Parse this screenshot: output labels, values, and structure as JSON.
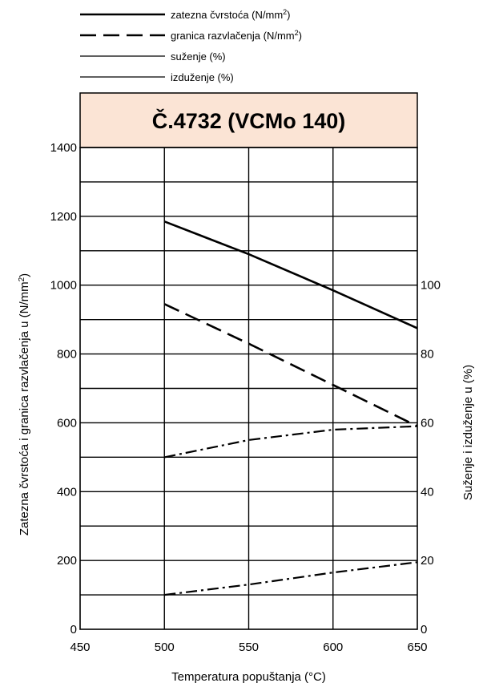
{
  "chart_data": {
    "type": "line",
    "title": "Č.4732 (VCMo 140)",
    "title_bg": "#fbe4d5",
    "xlabel": "Temperatura popuštanja (°C)",
    "ylabel": "Zatezna čvrstoća i granica razvlačenja u",
    "ylabel_unit": "(N/mm",
    "ylabel_unit_sup": "2",
    "ylabel_unit_close": ")",
    "y2label": "Suženje i izduženje u (%)",
    "xlim": [
      450,
      650
    ],
    "ylim": [
      0,
      1400
    ],
    "y2lim": [
      0,
      140
    ],
    "grid": true,
    "legend_position": "top",
    "x_ticks": [
      "450",
      "500",
      "550",
      "600",
      "650"
    ],
    "y_ticks": [
      "0",
      "200",
      "400",
      "600",
      "800",
      "1000",
      "1200",
      "1400"
    ],
    "y2_ticks": [
      "0",
      "20",
      "40",
      "60",
      "80",
      "100"
    ],
    "legend": [
      {
        "label": "zatezna čvrstoća (N/mm",
        "sup": "2",
        "close": ")",
        "dash": "solid-thick"
      },
      {
        "label": "granica razvlačenja (N/mm",
        "sup": "2",
        "close": ")",
        "dash": "dashed"
      },
      {
        "label": "suženje (%)",
        "dash": "solid-thin"
      },
      {
        "label": "izduženje (%)",
        "dash": "solid-thin"
      }
    ],
    "series": [
      {
        "axis": "left",
        "style": "solid-thick",
        "x": [
          500,
          550,
          600,
          650
        ],
        "values": [
          1185,
          1090,
          985,
          875
        ]
      },
      {
        "axis": "left",
        "style": "dashed",
        "x": [
          500,
          550,
          600,
          650
        ],
        "values": [
          945,
          830,
          710,
          590
        ]
      },
      {
        "axis": "right",
        "style": "dash-dot",
        "x": [
          500,
          550,
          600,
          650
        ],
        "values": [
          50,
          55,
          58,
          59
        ]
      },
      {
        "axis": "right",
        "style": "dash-dot",
        "x": [
          500,
          550,
          600,
          650
        ],
        "values": [
          10,
          13,
          16.5,
          19.5
        ]
      }
    ]
  }
}
